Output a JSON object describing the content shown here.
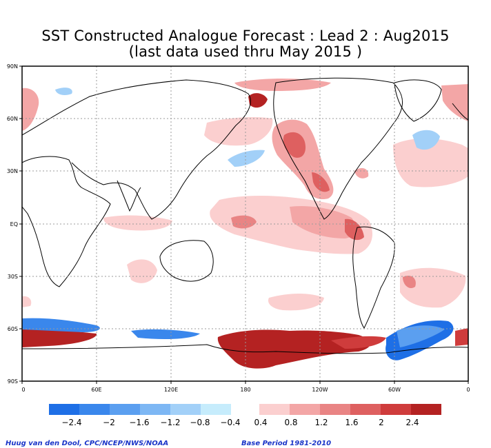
{
  "title": {
    "line1": "SST Constructed Analogue Forecast : Lead 2 : Aug2015",
    "line2": "(last data used thru May 2015 )"
  },
  "axes": {
    "lat_labels": [
      "90N",
      "60N",
      "30N",
      "EQ",
      "30S",
      "60S",
      "90S"
    ],
    "lon_labels": [
      "0",
      "60E",
      "120E",
      "180",
      "120W",
      "60W",
      "0"
    ]
  },
  "colorbar": {
    "negative_colors": [
      "#1e6fe6",
      "#3a87ec",
      "#5b9ff0",
      "#7db7f4",
      "#a2d0f8",
      "#c6ecfc"
    ],
    "positive_colors": [
      "#fbcfcf",
      "#f3a6a6",
      "#e98484",
      "#de6060",
      "#cf3c3c",
      "#b42222"
    ],
    "negative_labels": [
      "−2.4",
      "−2",
      "−1.6",
      "−1.2",
      "−0.8",
      "−0.4"
    ],
    "positive_labels": [
      "0.4",
      "0.8",
      "1.2",
      "1.6",
      "2",
      "2.4"
    ]
  },
  "footer": {
    "credit": "Huug van den Dool, CPC/NCEP/NWS/NOAA",
    "base_period": "Base Period 1981-2010"
  }
}
